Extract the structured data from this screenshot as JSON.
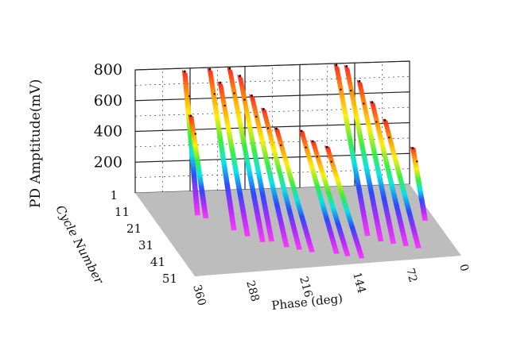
{
  "chart_data": {
    "type": "3d-waterfall",
    "zlabel": "PD Amptitude(mV)",
    "ylabel": "Cycle Number",
    "xlabel": "Phase (deg)",
    "z_ticks": [
      "200",
      "400",
      "600",
      "800"
    ],
    "cycle_ticks": [
      "1",
      "11",
      "21",
      "31",
      "41",
      "51"
    ],
    "phase_ticks": [
      "360",
      "288",
      "216",
      "144",
      "72",
      "0"
    ],
    "zlim": [
      0,
      800
    ],
    "cycle_range": [
      1,
      51
    ],
    "phase_range": [
      360,
      0
    ],
    "grid": true,
    "floor_color": "#bdbdbd",
    "colormap": [
      "#ff1a1a",
      "#ff8c00",
      "#ffee00",
      "#33ee33",
      "#00e5e5",
      "#2244ff",
      "#aa22ff",
      "#ff33ff"
    ],
    "peaks": [
      {
        "phase": 295,
        "amplitude": 790,
        "cycles": [
          1,
          12
        ]
      },
      {
        "phase": 287,
        "amplitude": 500,
        "cycles": [
          1,
          14
        ]
      },
      {
        "phase": 262,
        "amplitude": 800,
        "cycles": [
          1,
          22
        ]
      },
      {
        "phase": 250,
        "amplitude": 720,
        "cycles": [
          2,
          26
        ]
      },
      {
        "phase": 236,
        "amplitude": 800,
        "cycles": [
          1,
          30
        ]
      },
      {
        "phase": 224,
        "amplitude": 760,
        "cycles": [
          2,
          30
        ]
      },
      {
        "phase": 210,
        "amplitude": 640,
        "cycles": [
          3,
          34
        ]
      },
      {
        "phase": 196,
        "amplitude": 560,
        "cycles": [
          4,
          36
        ]
      },
      {
        "phase": 182,
        "amplitude": 450,
        "cycles": [
          6,
          38
        ]
      },
      {
        "phase": 152,
        "amplitude": 450,
        "cycles": [
          8,
          40
        ]
      },
      {
        "phase": 140,
        "amplitude": 400,
        "cycles": [
          10,
          42
        ]
      },
      {
        "phase": 124,
        "amplitude": 380,
        "cycles": [
          12,
          44
        ]
      },
      {
        "phase": 96,
        "amplitude": 800,
        "cycles": [
          1,
          30
        ]
      },
      {
        "phase": 84,
        "amplitude": 800,
        "cycles": [
          2,
          34
        ]
      },
      {
        "phase": 70,
        "amplitude": 720,
        "cycles": [
          4,
          36
        ]
      },
      {
        "phase": 56,
        "amplitude": 600,
        "cycles": [
          6,
          38
        ]
      },
      {
        "phase": 42,
        "amplitude": 500,
        "cycles": [
          8,
          40
        ]
      },
      {
        "phase": 8,
        "amplitude": 330,
        "cycles": [
          10,
          22
        ]
      }
    ]
  }
}
